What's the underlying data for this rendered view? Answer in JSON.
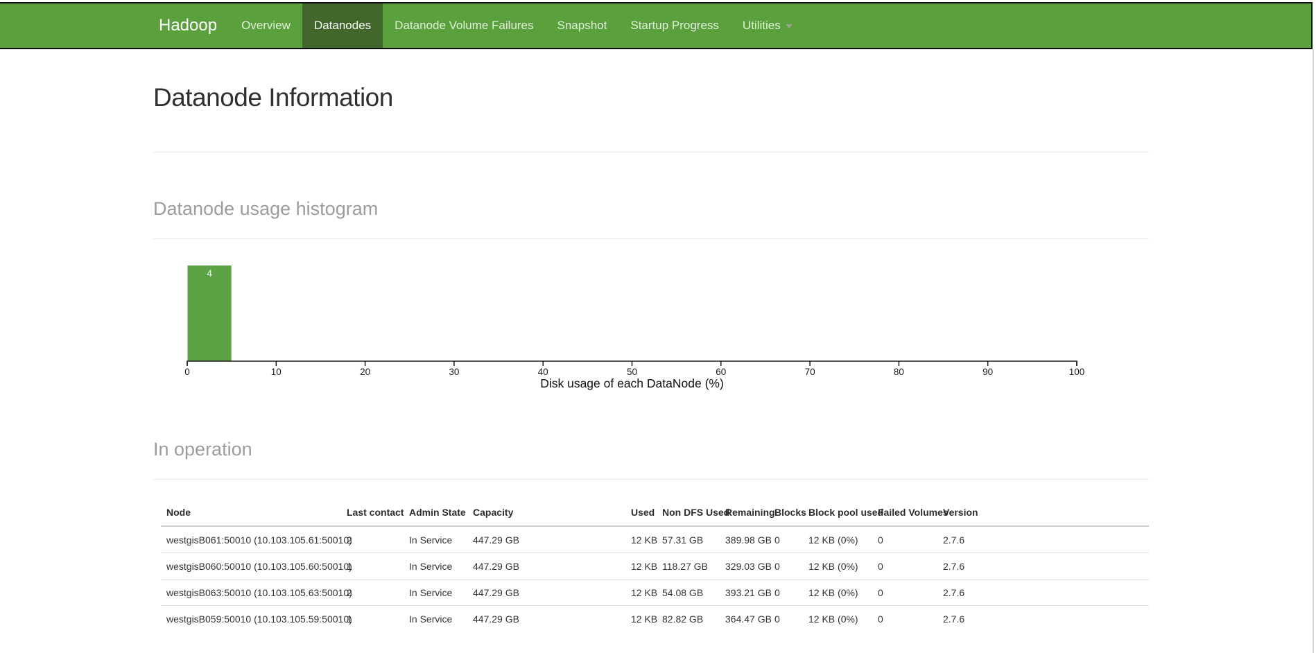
{
  "colors": {
    "nav_bg": "#5aa03c",
    "nav_active_bg": "#41682a",
    "nav_link": "#e3f2dc",
    "bar_fill": "#5ba344",
    "bar_label": "#ffffff",
    "axis": "#1a1a1a"
  },
  "navbar": {
    "brand": "Hadoop",
    "items": [
      {
        "label": "Overview",
        "active": false,
        "dropdown": false
      },
      {
        "label": "Datanodes",
        "active": true,
        "dropdown": false
      },
      {
        "label": "Datanode Volume Failures",
        "active": false,
        "dropdown": false
      },
      {
        "label": "Snapshot",
        "active": false,
        "dropdown": false
      },
      {
        "label": "Startup Progress",
        "active": false,
        "dropdown": false
      },
      {
        "label": "Utilities",
        "active": false,
        "dropdown": true
      }
    ]
  },
  "page": {
    "title": "Datanode Information",
    "histogram_heading": "Datanode usage histogram",
    "in_operation_heading": "In operation"
  },
  "chart_data": {
    "type": "bar",
    "title": "Datanode usage histogram",
    "xlabel": "Disk usage of each DataNode (%)",
    "ylabel": "",
    "xlim": [
      0,
      100
    ],
    "x_ticks": [
      0,
      10,
      20,
      30,
      40,
      50,
      60,
      70,
      80,
      90,
      100
    ],
    "grid": false,
    "bars": [
      {
        "range": [
          0,
          5
        ],
        "value": 4,
        "label": "4"
      }
    ]
  },
  "table": {
    "headers": [
      "Node",
      "Last contact",
      "Admin State",
      "Capacity",
      "Used",
      "Non DFS Used",
      "Remaining",
      "Blocks",
      "Block pool used",
      "Failed Volumes",
      "Version"
    ],
    "rows": [
      [
        "westgisB061:50010 (10.103.105.61:50010)",
        "2",
        "In Service",
        "447.29 GB",
        "12 KB",
        "57.31 GB",
        "389.98 GB",
        "0",
        "12 KB (0%)",
        "0",
        "2.7.6"
      ],
      [
        "westgisB060:50010 (10.103.105.60:50010)",
        "1",
        "In Service",
        "447.29 GB",
        "12 KB",
        "118.27 GB",
        "329.03 GB",
        "0",
        "12 KB (0%)",
        "0",
        "2.7.6"
      ],
      [
        "westgisB063:50010 (10.103.105.63:50010)",
        "2",
        "In Service",
        "447.29 GB",
        "12 KB",
        "54.08 GB",
        "393.21 GB",
        "0",
        "12 KB (0%)",
        "0",
        "2.7.6"
      ],
      [
        "westgisB059:50010 (10.103.105.59:50010)",
        "1",
        "In Service",
        "447.29 GB",
        "12 KB",
        "82.82 GB",
        "364.47 GB",
        "0",
        "12 KB (0%)",
        "0",
        "2.7.6"
      ]
    ]
  }
}
